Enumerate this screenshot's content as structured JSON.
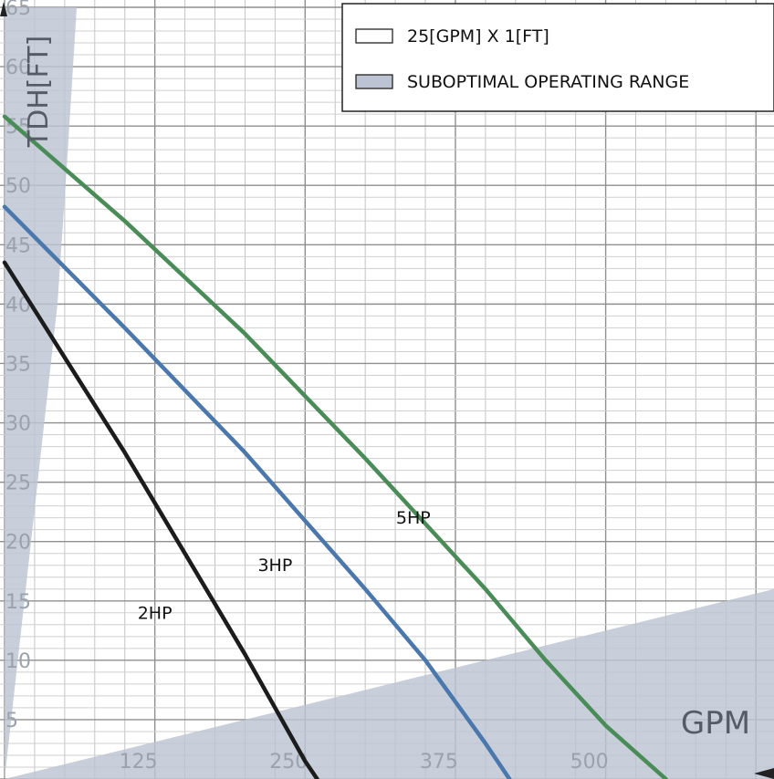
{
  "chart_data": {
    "type": "line",
    "xlabel": "GPM",
    "ylabel": "TDH[FT]",
    "xlim": [
      0,
      640
    ],
    "ylim": [
      0,
      65
    ],
    "grid": true,
    "grid_minor_x_step": 25,
    "grid_minor_y_step": 1,
    "grid_major_y_step": 5,
    "x_ticks": [
      {
        "value": 125,
        "label": "125"
      },
      {
        "value": 250,
        "label": "250"
      },
      {
        "value": 375,
        "label": "375"
      },
      {
        "value": 500,
        "label": "500"
      }
    ],
    "y_ticks": [
      {
        "value": 5,
        "label": "5"
      },
      {
        "value": 10,
        "label": "10"
      },
      {
        "value": 15,
        "label": "15"
      },
      {
        "value": 20,
        "label": "20"
      },
      {
        "value": 25,
        "label": "25"
      },
      {
        "value": 30,
        "label": "30"
      },
      {
        "value": 35,
        "label": "35"
      },
      {
        "value": 40,
        "label": "40"
      },
      {
        "value": 45,
        "label": "45"
      },
      {
        "value": 50,
        "label": "50"
      },
      {
        "value": 55,
        "label": "55"
      },
      {
        "value": 60,
        "label": "60"
      },
      {
        "value": 65,
        "label": "65"
      }
    ],
    "series": [
      {
        "name": "2HP",
        "color": "#1c1c1c",
        "points": [
          [
            0,
            43.5
          ],
          [
            50,
            35.5
          ],
          [
            100,
            27.5
          ],
          [
            150,
            19
          ],
          [
            200,
            10.5
          ],
          [
            250,
            1.5
          ],
          [
            260,
            0
          ]
        ],
        "label_at": [
          125,
          13.5
        ]
      },
      {
        "name": "3HP",
        "color": "#4a78ac",
        "points": [
          [
            0,
            48.2
          ],
          [
            100,
            38
          ],
          [
            200,
            27.5
          ],
          [
            300,
            16
          ],
          [
            350,
            10
          ],
          [
            400,
            3
          ],
          [
            420,
            0
          ]
        ],
        "label_at": [
          225,
          17.5
        ]
      },
      {
        "name": "5HP",
        "color": "#4a8c57",
        "points": [
          [
            0,
            55.8
          ],
          [
            100,
            47
          ],
          [
            200,
            37.5
          ],
          [
            300,
            27
          ],
          [
            400,
            16
          ],
          [
            450,
            10
          ],
          [
            500,
            4.5
          ],
          [
            550,
            0
          ]
        ],
        "label_at": [
          340,
          21.5
        ]
      }
    ],
    "suboptimal_regions": [
      {
        "points": [
          [
            0,
            65
          ],
          [
            60,
            65
          ],
          [
            52,
            52
          ],
          [
            44,
            40
          ],
          [
            0,
            0
          ]
        ]
      },
      {
        "points": [
          [
            0,
            0
          ],
          [
            640,
            16
          ],
          [
            640,
            0
          ]
        ]
      }
    ],
    "legend": {
      "placement": "top-right",
      "entries": [
        {
          "label": "25[GPM] X 1[FT]",
          "swatch": "#ffffff"
        },
        {
          "label": "SUBOPTIMAL OPERATING RANGE",
          "swatch": "#bcc3d2"
        }
      ]
    },
    "region_color": "#bcc3d2"
  }
}
